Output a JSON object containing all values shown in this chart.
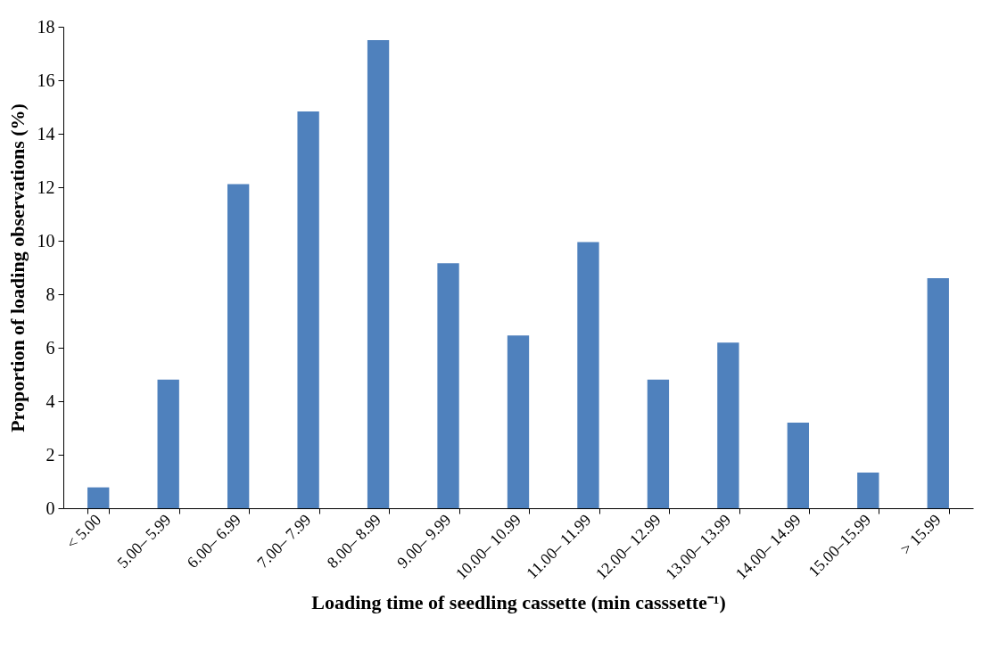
{
  "chart_data": {
    "type": "bar",
    "xlabel": "Loading time of seedling cassette (min casssette⁻¹)",
    "ylabel": "Proportion of loading observations (%)",
    "categories": [
      "< 5.00",
      "5.00– 5.99",
      "6.00– 6.99",
      "7.00– 7.99",
      "8.00– 8.99",
      "9.00– 9.99",
      "10.00– 10.99",
      "11.00– 11.99",
      "12.00– 12.99",
      "13.00– 13.99",
      "14.00– 14.99",
      "15.00–15.99",
      "> 15.99"
    ],
    "values": [
      0.78,
      4.81,
      12.12,
      14.83,
      17.5,
      9.16,
      6.46,
      9.95,
      4.81,
      6.19,
      3.2,
      1.33,
      8.6
    ],
    "color": "#4f81bd",
    "ylim": [
      0,
      18
    ],
    "yticks": [
      0,
      2,
      4,
      6,
      8,
      10,
      12,
      14,
      16,
      18
    ],
    "grid": false
  }
}
